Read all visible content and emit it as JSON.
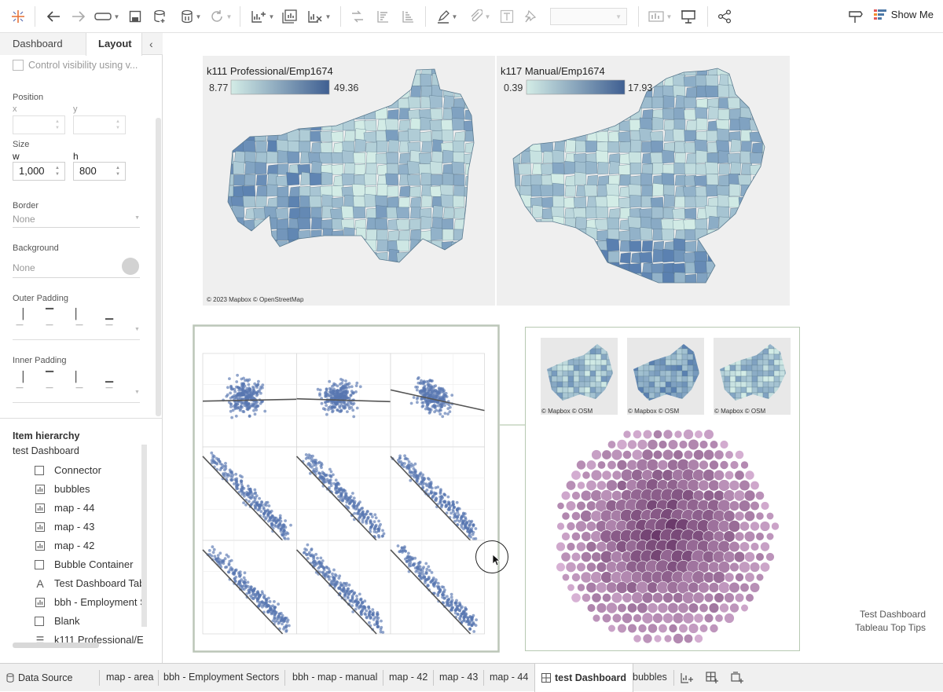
{
  "toolbar": {
    "show_me_label": "Show Me",
    "icons": [
      "tableau-logo-icon",
      "undo-icon",
      "redo-icon",
      "data-connection-icon",
      "save-icon",
      "new-data-source-icon",
      "pause-updates-icon",
      "refresh-icon",
      "new-worksheet-icon",
      "duplicate-sheet-icon",
      "clear-sheet-icon",
      "swap-icon",
      "sort-ascending-icon",
      "sort-descending-icon",
      "highlight-icon",
      "group-icon",
      "label-icon",
      "pin-icon",
      "fit-dropdown",
      "chart-icon",
      "presentation-icon",
      "share-icon",
      "tooltip-icon",
      "show-me-icon"
    ]
  },
  "left_panel": {
    "tabs": [
      {
        "label": "Dashboard"
      },
      {
        "label": "Layout"
      }
    ],
    "active_tab": "Layout",
    "control_visibility_label": "Control visibility using v...",
    "position": {
      "label": "Position",
      "x_label": "x",
      "y_label": "y",
      "x_value": "",
      "y_value": ""
    },
    "size": {
      "label": "Size",
      "w_label": "w",
      "h_label": "h",
      "w_value": "1,000",
      "h_value": "800"
    },
    "border": {
      "label": "Border",
      "value": "None"
    },
    "background": {
      "label": "Background",
      "value": "None"
    },
    "outer_padding_label": "Outer Padding",
    "inner_padding_label": "Inner Padding",
    "item_hierarchy": {
      "label": "Item hierarchy",
      "root": "test Dashboard",
      "items": [
        {
          "label": "Connector",
          "icon": "container-icon"
        },
        {
          "label": "bubbles",
          "icon": "sheet-icon"
        },
        {
          "label": "map - 44",
          "icon": "sheet-icon"
        },
        {
          "label": "map - 43",
          "icon": "sheet-icon"
        },
        {
          "label": "map - 42",
          "icon": "sheet-icon"
        },
        {
          "label": "Bubble Container",
          "icon": "container-icon"
        },
        {
          "label": "Test Dashboard Tabl",
          "icon": "text-icon"
        },
        {
          "label": "bbh - Employment S",
          "icon": "sheet-icon"
        },
        {
          "label": "Blank",
          "icon": "container-icon"
        },
        {
          "label": "k111 Professional/E",
          "icon": "legend-icon"
        }
      ]
    }
  },
  "canvas": {
    "map1": {
      "title": "k111 Professional/Emp1674",
      "legend_min": "8.77",
      "legend_max": "49.36",
      "credit": "© 2023 Mapbox © OpenStreetMap"
    },
    "map2": {
      "title": "k117 Manual/Emp1674",
      "legend_min": "0.39",
      "legend_max": "17.93"
    },
    "small_map_credit": "© Mapbox © OSM",
    "footer_line1": "Test Dashboard",
    "footer_line2": "Tableau Top Tips",
    "colors": {
      "map_light": "#d3ece6",
      "map_dark": "#5a80b0",
      "scatter_point": "#5877b0",
      "trend_line": "#555555",
      "bubble_light": "#d9b3d6",
      "bubble_dark": "#6b3a6b"
    }
  },
  "bottom_tabs": [
    {
      "label": "Data Source",
      "icon": "database-icon"
    },
    {
      "label": "map - area"
    },
    {
      "label": "bbh - Employment Sectors"
    },
    {
      "label": "bbh - map - manual"
    },
    {
      "label": "map - 42"
    },
    {
      "label": "map - 43"
    },
    {
      "label": "map - 44"
    },
    {
      "label": "test Dashboard",
      "icon": "dashboard-icon",
      "active": true
    },
    {
      "label": "bubbles"
    }
  ],
  "bottom_icons": [
    "new-worksheet-icon",
    "new-dashboard-icon",
    "new-story-icon"
  ]
}
